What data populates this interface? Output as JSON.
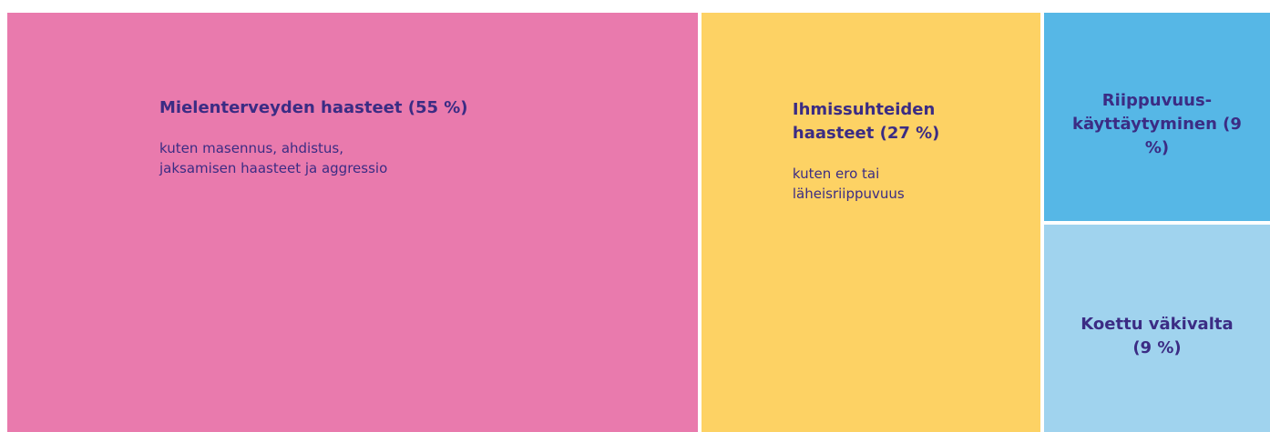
{
  "chart_data": {
    "type": "treemap",
    "categories": [
      "Mielenterveyden haasteet (55 %)",
      "Ihmissuhteiden haasteet (27 %)",
      "Riippuvuus-käyttäytyminen (9 %)",
      "Koettu väkivalta (9 %)"
    ],
    "descriptions": [
      "kuten masennus, ahdistus, jaksamisen haasteet ja aggressio",
      "kuten ero tai läheisriippuvuus",
      null,
      null
    ],
    "values": [
      55,
      27,
      9,
      9
    ],
    "colors": [
      "#e97aad",
      "#fdd264",
      "#56b7e6",
      "#a0d3ee"
    ]
  }
}
